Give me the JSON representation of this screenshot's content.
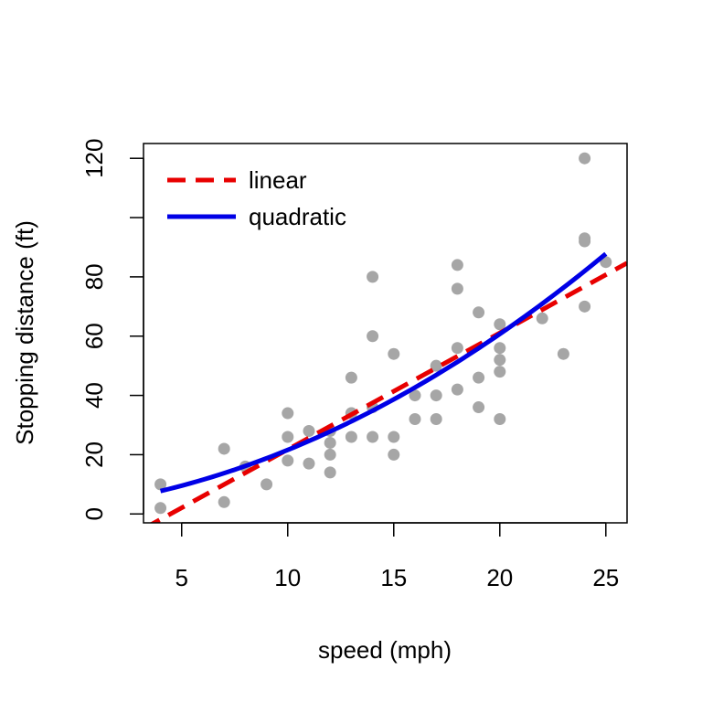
{
  "chart_data": {
    "type": "scatter",
    "xlabel": "speed (mph)",
    "ylabel": "Stopping distance (ft)",
    "xlim": [
      3.2,
      26
    ],
    "ylim": [
      -3,
      125
    ],
    "x_ticks": [
      5,
      10,
      15,
      20,
      25
    ],
    "y_ticks": [
      0,
      20,
      40,
      60,
      80,
      100,
      120
    ],
    "y_tick_labels": [
      "0",
      "20",
      "40",
      "60",
      "80",
      "",
      "120"
    ],
    "grid": false,
    "legend_position": "top-left",
    "points": {
      "color": "#a6a6a6",
      "x": [
        4,
        4,
        7,
        7,
        8,
        9,
        10,
        10,
        10,
        11,
        11,
        12,
        12,
        12,
        12,
        13,
        13,
        13,
        13,
        14,
        14,
        14,
        14,
        15,
        15,
        15,
        16,
        16,
        17,
        17,
        17,
        18,
        18,
        18,
        18,
        19,
        19,
        19,
        20,
        20,
        20,
        20,
        20,
        22,
        23,
        24,
        24,
        24,
        24,
        25
      ],
      "y": [
        2,
        10,
        4,
        22,
        16,
        10,
        18,
        26,
        34,
        17,
        28,
        14,
        20,
        24,
        28,
        26,
        34,
        34,
        46,
        26,
        36,
        60,
        80,
        20,
        26,
        54,
        32,
        40,
        32,
        40,
        50,
        42,
        56,
        76,
        84,
        36,
        46,
        68,
        32,
        48,
        52,
        56,
        64,
        66,
        54,
        70,
        92,
        93,
        120,
        85
      ]
    },
    "series": [
      {
        "name": "linear",
        "color": "#e80000",
        "style": "dashed",
        "kind": "linear",
        "intercept": -17.579,
        "slope": 3.932
      },
      {
        "name": "quadratic",
        "color": "#0000e6",
        "style": "solid",
        "kind": "quadratic",
        "c0": 2.47014,
        "c1": 0.91329,
        "c2": 0.09996,
        "x_range": [
          4,
          25
        ]
      }
    ]
  }
}
